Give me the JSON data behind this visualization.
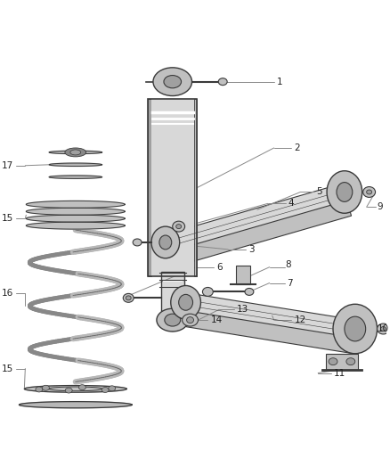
{
  "bg_color": "#ffffff",
  "line_color": "#444444",
  "figsize": [
    4.38,
    5.33
  ],
  "dpi": 100,
  "label_fs": 7.5,
  "leader_color": "#888888",
  "leader_lw": 0.7,
  "part_stroke": "#3a3a3a",
  "part_fill_light": "#d8d8d8",
  "part_fill_mid": "#c0c0c0",
  "part_fill_dark": "#a0a0a0",
  "spring_color_front": "#b0b0b0",
  "spring_color_back": "#888888",
  "spring_lw": 4.5
}
